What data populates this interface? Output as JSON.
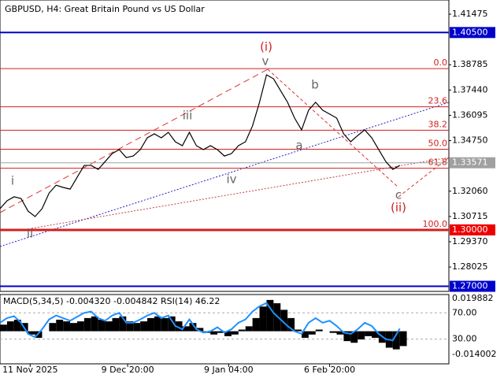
{
  "chart_data": [
    {
      "type": "line",
      "title": "GBPUSD, H4:  Great Britain Pound vs US Dollar",
      "color": "#000000",
      "x": [
        0,
        1,
        2,
        3,
        4,
        5,
        6,
        7,
        8,
        9,
        10,
        11,
        12,
        13,
        14,
        15,
        16,
        17,
        18,
        19,
        20,
        21,
        22,
        23,
        24,
        25,
        26,
        27,
        28,
        29,
        30,
        31,
        32,
        33,
        34,
        35,
        36,
        37,
        38,
        39,
        40,
        41,
        42,
        43,
        44,
        45,
        46,
        47,
        48,
        49,
        50,
        51,
        52,
        53,
        54,
        55,
        56,
        57
      ],
      "values": [
        1.3113,
        1.3155,
        1.3176,
        1.3167,
        1.31,
        1.3071,
        1.3113,
        1.3196,
        1.3238,
        1.3226,
        1.3217,
        1.328,
        1.3343,
        1.3343,
        1.3322,
        1.3364,
        1.3406,
        1.3427,
        1.3385,
        1.3393,
        1.3427,
        1.349,
        1.3511,
        1.349,
        1.3519,
        1.3469,
        1.3448,
        1.3519,
        1.3448,
        1.3427,
        1.3448,
        1.3427,
        1.3393,
        1.3406,
        1.3448,
        1.3469,
        1.3553,
        1.3679,
        1.3825,
        1.3804,
        1.3741,
        1.3679,
        1.3595,
        1.3532,
        1.3637,
        1.3679,
        1.3637,
        1.3616,
        1.3595,
        1.3511,
        1.3469,
        1.3502,
        1.3532,
        1.349,
        1.3427,
        1.3364,
        1.3322,
        1.3343
      ],
      "xlim": [
        0,
        64
      ],
      "ylim": [
        1.2673,
        1.4223
      ],
      "yticks": [
        1.41475,
        1.38785,
        {
          "value": 1.3744,
          "label": "1.37440"
        },
        1.36095,
        {
          "value": 1.3475,
          "label": "1.34750"
        },
        {
          "value": 1.3206,
          "label": "1.32060"
        },
        1.30715,
        {
          "value": 1.2937,
          "label": "1.29370"
        },
        1.28025
      ],
      "levels": [
        {
          "value": 1.405,
          "label": "1.40500",
          "color": "#0000cc"
        },
        {
          "value": 1.33571,
          "label": "1.33571",
          "color": "#a0a0a0"
        },
        {
          "value": 1.3,
          "label": "1.30000",
          "color": "#ee0000"
        },
        {
          "value": 1.27,
          "label": "1.27000",
          "color": "#0000cc"
        }
      ],
      "fib_levels": [
        {
          "value": 1.3858,
          "label": "0.0"
        },
        {
          "value": 1.3655,
          "label": "23.6"
        },
        {
          "value": 1.353,
          "label": "38.2"
        },
        {
          "value": 1.3429,
          "label": "50.0"
        },
        {
          "value": 1.3328,
          "label": "61.8"
        },
        {
          "value": 1.3,
          "label": "100.0"
        }
      ],
      "annotations": [
        "i",
        "ii",
        "iii",
        "iv",
        "v",
        "(i)",
        "a",
        "b",
        "c",
        "(ii)"
      ]
    },
    {
      "type": "bar",
      "title": "MACD(5,34,5) -0.004320 -0.004842 RSI(14) 46.22",
      "x": [
        0,
        1,
        2,
        3,
        4,
        5,
        6,
        7,
        8,
        9,
        10,
        11,
        12,
        13,
        14,
        15,
        16,
        17,
        18,
        19,
        20,
        21,
        22,
        23,
        24,
        25,
        26,
        27,
        28,
        29,
        30,
        31,
        32,
        33,
        34,
        35,
        36,
        37,
        38,
        39,
        40,
        41,
        42,
        43,
        44,
        45,
        46,
        47,
        48,
        49,
        50,
        51,
        52,
        53,
        54,
        55,
        56,
        57
      ],
      "series": [
        {
          "color": "#000000",
          "values": [
            0.004,
            0.006,
            0.007,
            0.005,
            -0.002,
            -0.004,
            0.0,
            0.005,
            0.007,
            0.006,
            0.005,
            0.006,
            0.008,
            0.009,
            0.007,
            0.006,
            0.008,
            0.009,
            0.006,
            0.005,
            0.006,
            0.008,
            0.009,
            0.008,
            0.009,
            0.006,
            0.003,
            0.005,
            0.002,
            -0.001,
            -0.002,
            -0.001,
            -0.003,
            -0.002,
            0.001,
            0.003,
            0.008,
            0.015,
            0.019,
            0.017,
            0.013,
            0.008,
            0.001,
            -0.004,
            -0.002,
            0.001,
            0.0,
            -0.001,
            -0.002,
            -0.006,
            -0.007,
            -0.005,
            -0.003,
            -0.004,
            -0.007,
            -0.01,
            -0.011,
            -0.009
          ]
        },
        {
          "color": "#1e90ff",
          "axis": "y2",
          "values": [
            55,
            62,
            65,
            55,
            38,
            33,
            45,
            60,
            66,
            62,
            58,
            64,
            70,
            72,
            62,
            58,
            66,
            70,
            55,
            55,
            60,
            66,
            70,
            62,
            66,
            50,
            45,
            60,
            45,
            40,
            42,
            48,
            40,
            45,
            55,
            60,
            72,
            80,
            85,
            70,
            60,
            50,
            42,
            38,
            55,
            62,
            55,
            58,
            50,
            40,
            38,
            45,
            55,
            50,
            38,
            30,
            28,
            46
          ]
        }
      ],
      "xlim": [
        0,
        64
      ],
      "ylim": [
        -0.0198,
        0.0223
      ],
      "yticks": [
        0.019882,
        -0.014002
      ],
      "y2lim": [
        -7.6,
        97.9
      ],
      "y2ticks": [
        {
          "value": 70,
          "label": "70.00"
        },
        {
          "value": 30,
          "label": "30.00"
        }
      ],
      "xticks": [
        {
          "value": 4.3,
          "label": "11 Nov 2025"
        },
        {
          "value": 18.2,
          "label": "9 Dec 20:00"
        },
        {
          "value": 32.6,
          "label": "9 Jan 04:00"
        },
        {
          "value": 47,
          "label": "6 Feb 20:00"
        }
      ]
    }
  ]
}
